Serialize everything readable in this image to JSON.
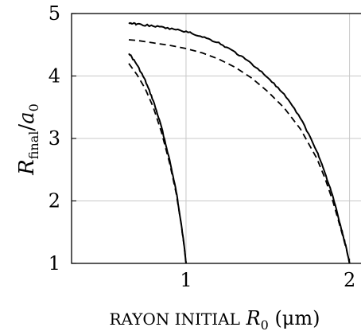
{
  "chart_data": {
    "type": "line",
    "xlabel_prefix": "RAYON INITIAL",
    "xlabel_symbol": "R",
    "xlabel_subscript": "0",
    "xlabel_unit": "(μm)",
    "ylabel_numerator": "R",
    "ylabel_numerator_subscript": "final",
    "ylabel_denominator": "a",
    "ylabel_denominator_subscript": "0",
    "xlim": [
      0.3,
      2.07
    ],
    "ylim": [
      1,
      5
    ],
    "xticks": [
      1,
      2
    ],
    "yticks": [
      1,
      2,
      3,
      4,
      5
    ],
    "grid": true,
    "series": [
      {
        "style": "solid",
        "x": [
          0.65,
          0.7,
          0.75,
          0.8,
          0.85,
          0.9,
          0.94,
          0.97,
          0.99,
          1.0
        ],
        "y": [
          4.37,
          4.18,
          3.93,
          3.6,
          3.18,
          2.65,
          2.15,
          1.65,
          1.25,
          1.0
        ]
      },
      {
        "style": "dashed",
        "x": [
          0.65,
          0.7,
          0.75,
          0.8,
          0.85,
          0.9,
          0.94,
          0.97,
          0.99,
          1.0
        ],
        "y": [
          4.2,
          4.02,
          3.8,
          3.5,
          3.1,
          2.6,
          2.12,
          1.63,
          1.24,
          1.0
        ]
      },
      {
        "style": "solid",
        "x": [
          0.65,
          0.7,
          0.8,
          0.9,
          1.0,
          1.1,
          1.2,
          1.3,
          1.4,
          1.5,
          1.6,
          1.7,
          1.8,
          1.85,
          1.9,
          1.95,
          1.98,
          2.0
        ],
        "y": [
          4.85,
          4.83,
          4.8,
          4.76,
          4.71,
          4.63,
          4.53,
          4.38,
          4.2,
          3.98,
          3.7,
          3.33,
          2.8,
          2.45,
          2.05,
          1.55,
          1.25,
          1.0
        ]
      },
      {
        "style": "dashed",
        "x": [
          0.65,
          0.7,
          0.8,
          0.9,
          1.0,
          1.1,
          1.2,
          1.3,
          1.4,
          1.5,
          1.6,
          1.7,
          1.8,
          1.85,
          1.9,
          1.95,
          1.98,
          2.0
        ],
        "y": [
          4.58,
          4.57,
          4.53,
          4.49,
          4.44,
          4.37,
          4.27,
          4.14,
          3.97,
          3.75,
          3.49,
          3.15,
          2.68,
          2.36,
          1.98,
          1.52,
          1.23,
          1.0
        ]
      }
    ]
  }
}
